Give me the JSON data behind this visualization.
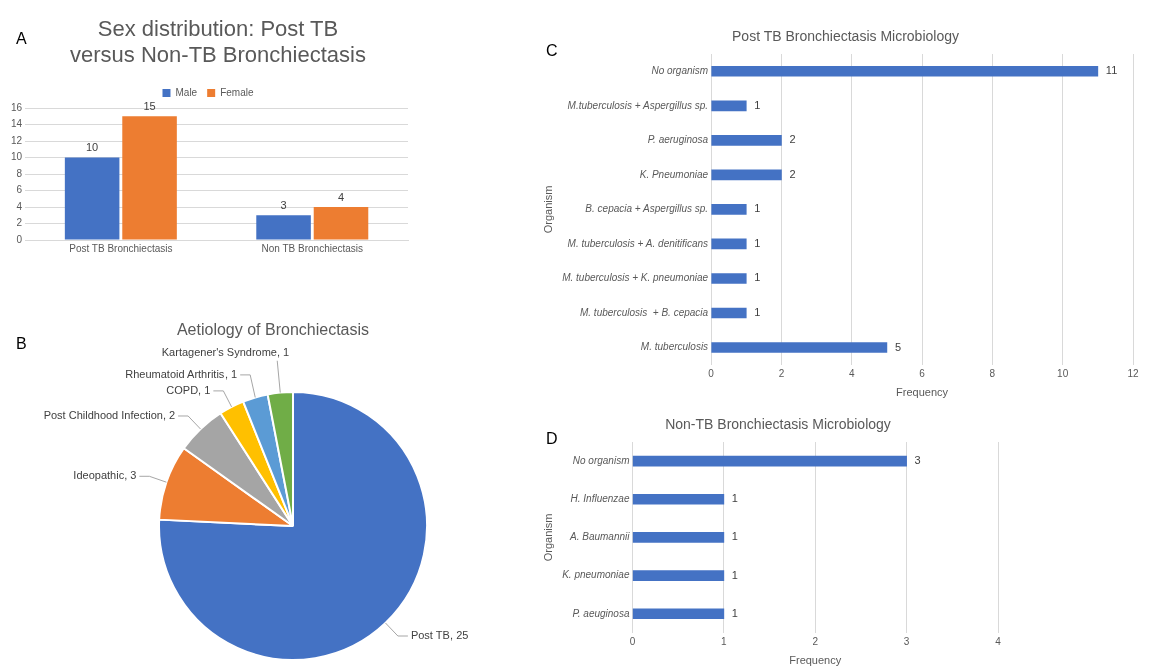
{
  "chart_data": [
    {
      "type": "bar",
      "title": "Sex distribution: Post TB versus Non-TB Bronchiectasis",
      "annotations": [
        "A"
      ],
      "categories": [
        "Post TB Bronchiectasis",
        "Non TB Bronchiectasis"
      ],
      "series": [
        {
          "name": "Male",
          "color": "#4472c4",
          "values": [
            10,
            3
          ]
        },
        {
          "name": "Female",
          "color": "#ed7d31",
          "values": [
            15,
            4
          ]
        }
      ],
      "ylim": [
        0,
        16
      ],
      "yticks": [
        0,
        2,
        4,
        6,
        8,
        10,
        12,
        14,
        16
      ],
      "grid": "y",
      "legend": "top",
      "data_labels": true
    },
    {
      "type": "pie",
      "title": "Aetiology of Bronchiectasis",
      "annotations": [
        "B"
      ],
      "categories": [
        "Post TB",
        "Ideopathic",
        "Post Childhood Infection",
        "COPD",
        "Rheumatoid Arthritis",
        "Kartagener's Syndrome"
      ],
      "values": [
        25,
        3,
        2,
        1,
        1,
        1
      ],
      "colors": [
        "#4472c4",
        "#ed7d31",
        "#a5a5a5",
        "#ffc000",
        "#5b9bd5",
        "#70ad47"
      ],
      "value_labels": [
        ", 25",
        ", 3",
        ", 2",
        ", 1",
        ", 1",
        ", 1"
      ]
    },
    {
      "type": "bar",
      "orientation": "horizontal",
      "title": "Post TB Bronchiectasis Microbiology",
      "annotations": [
        "C"
      ],
      "xlabel": "Frequency",
      "ylabel": "Organism",
      "categories": [
        "No organism",
        "M.tuberculosis + Aspergillus sp.",
        "P. aeruginosa",
        "K. Pneumoniae",
        "B. cepacia + Aspergillus sp.",
        "M. tuberculosis + A. denitificans",
        "M. tuberculosis + K. pneumoniae",
        "M. tuberculosis  + B. cepacia",
        "M. tuberculosis"
      ],
      "values": [
        11,
        1,
        2,
        2,
        1,
        1,
        1,
        1,
        5
      ],
      "color": "#4472c4",
      "xlim": [
        0,
        12
      ],
      "xticks": [
        0,
        2,
        4,
        6,
        8,
        10,
        12
      ],
      "grid": "x",
      "data_labels": true
    },
    {
      "type": "bar",
      "orientation": "horizontal",
      "title": "Non-TB Bronchiectasis Microbiology",
      "annotations": [
        "D"
      ],
      "xlabel": "Frequency",
      "ylabel": "Organism",
      "categories": [
        "No organism",
        "H. Influenzae",
        "A. Baumannii",
        "K. pneumoniae",
        "P. aeuginosa"
      ],
      "values": [
        3,
        1,
        1,
        1,
        1
      ],
      "color": "#4472c4",
      "xlim": [
        0,
        4
      ],
      "xticks": [
        0,
        1,
        2,
        3,
        4
      ],
      "grid": "x",
      "data_labels": true
    }
  ]
}
